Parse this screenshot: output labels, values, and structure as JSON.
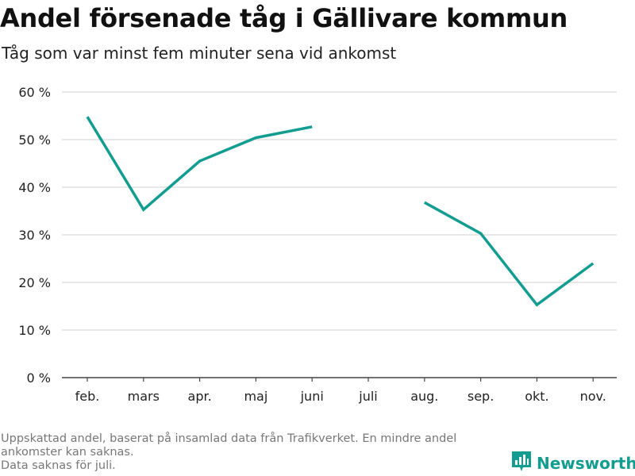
{
  "header": {
    "title": "Andel försenade tåg i Gällivare kommun",
    "subtitle": "Tåg som var minst fem minuter sena vid ankomst"
  },
  "footnote": {
    "line1": "Uppskattad andel, baserat på insamlad data från Trafikverket. En mindre andel",
    "line2": "ankomster kan saknas.",
    "line3": "Data saknas för juli."
  },
  "brand": {
    "name": "Newsworthy",
    "icon": "bar-chart-logo-icon",
    "color": "#139d90"
  },
  "chart_data": {
    "type": "line",
    "title": "Andel försenade tåg i Gällivare kommun",
    "subtitle": "Tåg som var minst fem minuter sena vid ankomst",
    "xlabel": "",
    "ylabel": "",
    "categories": [
      "feb.",
      "mars",
      "apr.",
      "maj",
      "juni",
      "juli",
      "aug.",
      "sep.",
      "okt.",
      "nov."
    ],
    "series": [
      {
        "values": [
          54.8,
          35.3,
          45.5,
          50.4,
          52.7,
          null,
          36.8,
          30.3,
          15.3,
          24.0
        ],
        "color": "#139d90"
      }
    ],
    "ylim": [
      0,
      60
    ],
    "yticks": [
      0,
      10,
      20,
      30,
      40,
      50,
      60
    ],
    "ytick_labels": [
      "0 %",
      "10 %",
      "20 %",
      "30 %",
      "40 %",
      "50 %",
      "60 %"
    ],
    "grid": true,
    "legend": "none"
  }
}
